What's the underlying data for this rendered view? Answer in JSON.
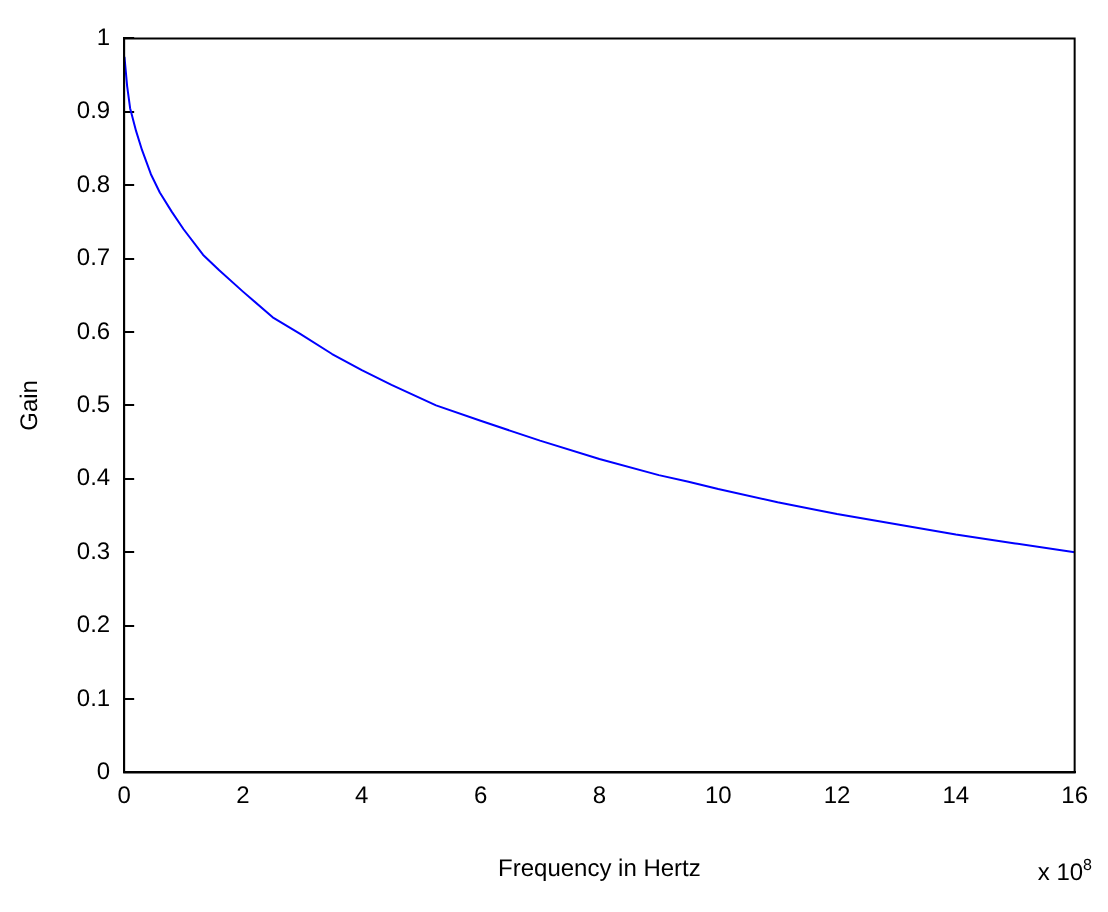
{
  "chart_data": {
    "type": "line",
    "xlabel": "Frequency in Hertz",
    "ylabel": "Gain",
    "annotations": [
      "x 10$^{8}$"
    ],
    "x": [
      0.005,
      0.05,
      0.1,
      0.2,
      0.3,
      0.45,
      0.6,
      0.8,
      1,
      1.33,
      1.6,
      2,
      2.5,
      2.97,
      3.5,
      4,
      4.5,
      5.25,
      6,
      7,
      8,
      9,
      9.5,
      10,
      11,
      12,
      13,
      14,
      15,
      16
    ],
    "series": [
      {
        "color": "#0000ff",
        "values": [
          0.975,
          0.935,
          0.905,
          0.874,
          0.848,
          0.815,
          0.79,
          0.764,
          0.74,
          0.705,
          0.684,
          0.655,
          0.62,
          0.597,
          0.57,
          0.548,
          0.528,
          0.5,
          0.479,
          0.452,
          0.427,
          0.405,
          0.396,
          0.386,
          0.368,
          0.352,
          0.338,
          0.324,
          0.312,
          0.3
        ]
      }
    ],
    "xlim": [
      0,
      16
    ],
    "xticks": [
      0,
      2,
      4,
      6,
      8,
      10,
      12,
      14,
      16
    ],
    "ylim": [
      0,
      1
    ],
    "yticks": [
      0,
      0.1,
      0.2,
      0.3,
      0.4,
      0.5,
      0.6,
      0.7,
      0.8,
      0.9,
      1
    ],
    "grid": false,
    "legend": false,
    "marker": "none",
    "line_style": "solid"
  }
}
